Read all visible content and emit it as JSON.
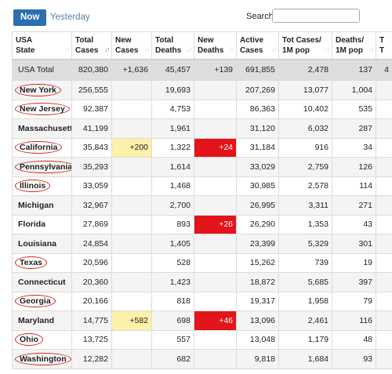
{
  "tabs": {
    "now": "Now",
    "yesterday": "Yesterday"
  },
  "search": {
    "label": "Search:",
    "value": ""
  },
  "columns": [
    {
      "line1": "USA",
      "line2": "State"
    },
    {
      "line1": "Total",
      "line2": "Cases"
    },
    {
      "line1": "New",
      "line2": "Cases"
    },
    {
      "line1": "Total",
      "line2": "Deaths"
    },
    {
      "line1": "New",
      "line2": "Deaths"
    },
    {
      "line1": "Active",
      "line2": "Cases"
    },
    {
      "line1": "Tot Cases/",
      "line2": "1M pop"
    },
    {
      "line1": "Deaths/",
      "line2": "1M pop"
    },
    {
      "line1": "T",
      "line2": "T"
    }
  ],
  "sort_glyph": "↓↑",
  "total": [
    "USA Total",
    "820,380",
    "+1,636",
    "45,457",
    "+139",
    "691,855",
    "2,478",
    "137",
    "4"
  ],
  "rows": [
    [
      "New York",
      "256,555",
      "",
      "19,693",
      "",
      "207,269",
      "13,077",
      "1,004",
      ""
    ],
    [
      "New Jersey",
      "92,387",
      "",
      "4,753",
      "",
      "86,363",
      "10,402",
      "535",
      ""
    ],
    [
      "Massachusetts",
      "41,199",
      "",
      "1,961",
      "",
      "31,120",
      "6,032",
      "287",
      ""
    ],
    [
      "California",
      "35,843",
      "+200",
      "1,322",
      "+24",
      "31,184",
      "916",
      "34",
      ""
    ],
    [
      "Pennsylvania",
      "35,293",
      "",
      "1,614",
      "",
      "33,029",
      "2,759",
      "126",
      ""
    ],
    [
      "Illinois",
      "33,059",
      "",
      "1,468",
      "",
      "30,985",
      "2,578",
      "114",
      ""
    ],
    [
      "Michigan",
      "32,967",
      "",
      "2,700",
      "",
      "26,995",
      "3,311",
      "271",
      ""
    ],
    [
      "Florida",
      "27,869",
      "",
      "893",
      "+26",
      "26,290",
      "1,353",
      "43",
      ""
    ],
    [
      "Louisiana",
      "24,854",
      "",
      "1,405",
      "",
      "23,399",
      "5,329",
      "301",
      ""
    ],
    [
      "Texas",
      "20,596",
      "",
      "528",
      "",
      "15,262",
      "739",
      "19",
      ""
    ],
    [
      "Connecticut",
      "20,360",
      "",
      "1,423",
      "",
      "18,872",
      "5,685",
      "397",
      ""
    ],
    [
      "Georgia",
      "20,166",
      "",
      "818",
      "",
      "19,317",
      "1,958",
      "79",
      ""
    ],
    [
      "Maryland",
      "14,775",
      "+582",
      "698",
      "+46",
      "13,096",
      "2,461",
      "116",
      ""
    ],
    [
      "Ohio",
      "13,725",
      "",
      "557",
      "",
      "13,048",
      "1,179",
      "48",
      ""
    ],
    [
      "Washington",
      "12,282",
      "",
      "682",
      "",
      "9,818",
      "1,684",
      "93",
      ""
    ]
  ],
  "circled_states": [
    "New York",
    "New Jersey",
    "California",
    "Pennsylvania",
    "Illinois",
    "Texas",
    "Georgia",
    "Ohio",
    "Washington"
  ],
  "colors": {
    "tab_active": "#2a6fb0",
    "new_cases_highlight": "#fbf1a9",
    "new_deaths_highlight": "#e2151b",
    "annotation_circle": "#d8231b"
  }
}
